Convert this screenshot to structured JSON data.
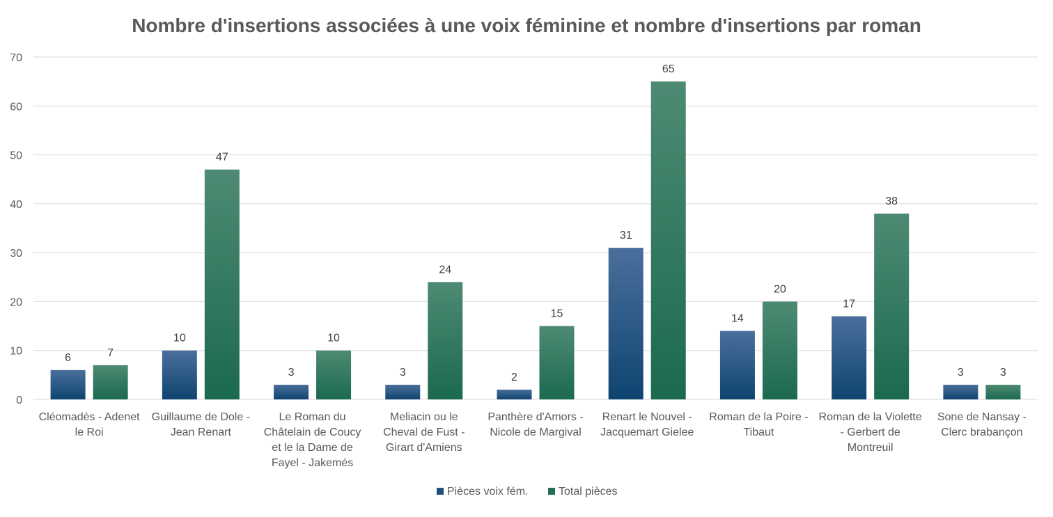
{
  "chart_data": {
    "type": "bar",
    "title": "Nombre d'insertions associées à une voix féminine et nombre d'insertions par roman",
    "xlabel": "",
    "ylabel": "",
    "ylim": [
      0,
      70
    ],
    "yticks": [
      0,
      10,
      20,
      30,
      40,
      50,
      60,
      70
    ],
    "grid": true,
    "legend_position": "bottom",
    "categories": [
      [
        "Cléomadès - Adenet",
        "le Roi"
      ],
      [
        "Guillaume de Dole -",
        "Jean Renart"
      ],
      [
        "Le Roman du",
        "Châtelain de Coucy",
        "et le la Dame de",
        "Fayel - Jakemés"
      ],
      [
        "Meliacin ou le",
        "Cheval de Fust -",
        "Girart d'Amiens"
      ],
      [
        "Panthère d'Amors -",
        "Nicole de Margival"
      ],
      [
        "Renart le Nouvel -",
        "Jacquemart Gielee"
      ],
      [
        "Roman de la Poire -",
        "Tibaut"
      ],
      [
        "Roman de la Violette",
        "- Gerbert de",
        "Montreuil"
      ],
      [
        "Sone de Nansay -",
        "Clerc brabançon"
      ]
    ],
    "series": [
      {
        "name": "Pièces voix fém.",
        "color": "#1f4e79",
        "values": [
          6,
          10,
          3,
          3,
          2,
          31,
          14,
          17,
          3
        ]
      },
      {
        "name": "Total pièces",
        "color": "#217052",
        "values": [
          7,
          47,
          10,
          24,
          15,
          65,
          20,
          38,
          3
        ]
      }
    ]
  }
}
